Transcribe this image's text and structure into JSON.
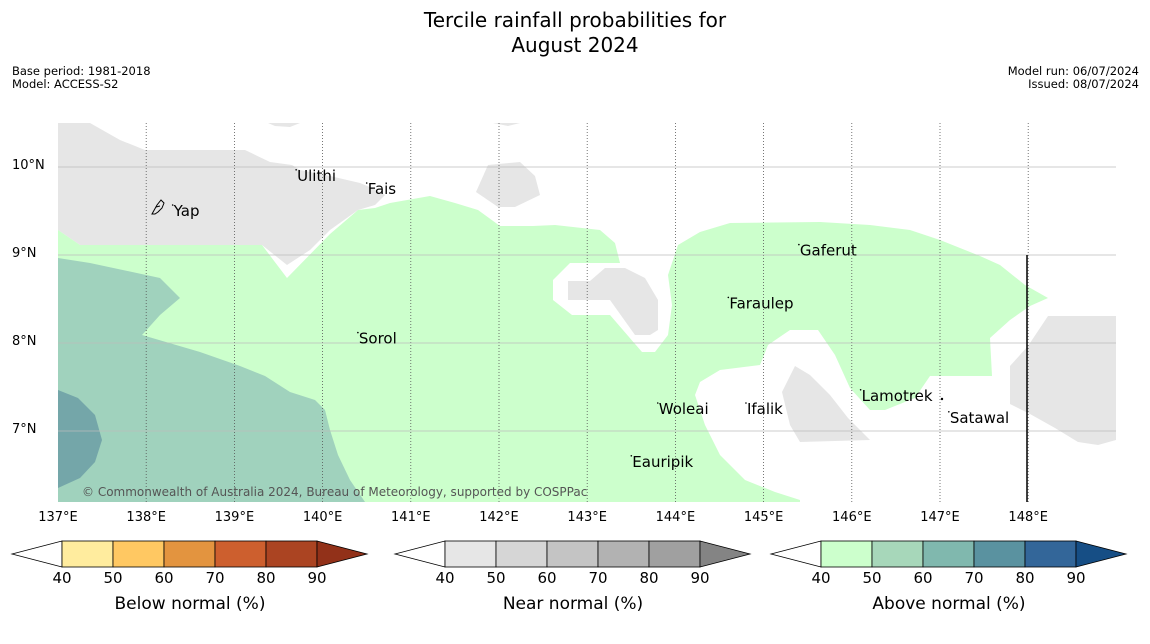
{
  "title_line1": "Tercile rainfall probabilities for",
  "title_line2": "August 2024",
  "meta_left": {
    "base_period": "Base period: 1981-2018",
    "model": "Model: ACCESS-S2"
  },
  "meta_right": {
    "model_run": "Model run: 06/07/2024",
    "issued": "Issued: 08/07/2024"
  },
  "longitude_labels": [
    "137°E",
    "138°E",
    "139°E",
    "140°E",
    "141°E",
    "142°E",
    "143°E",
    "144°E",
    "145°E",
    "146°E",
    "147°E",
    "148°E"
  ],
  "latitude_labels": [
    "10°N",
    "9°N",
    "8°N",
    "7°N"
  ],
  "places": [
    {
      "name": "Yap",
      "lon": 138.3,
      "lat": 9.5
    },
    {
      "name": "Ulithi",
      "lon": 139.7,
      "lat": 9.9
    },
    {
      "name": "Fais",
      "lon": 140.5,
      "lat": 9.75
    },
    {
      "name": "Gaferut",
      "lon": 145.4,
      "lat": 9.05
    },
    {
      "name": "Faraulep",
      "lon": 144.6,
      "lat": 8.45
    },
    {
      "name": "Sorol",
      "lon": 140.4,
      "lat": 8.05
    },
    {
      "name": "Lamotrek",
      "lon": 146.1,
      "lat": 7.4
    },
    {
      "name": "Woleai",
      "lon": 143.8,
      "lat": 7.25
    },
    {
      "name": "Ifalik",
      "lon": 144.8,
      "lat": 7.25
    },
    {
      "name": "Satawal",
      "lon": 147.1,
      "lat": 7.15
    },
    {
      "name": "Eauripik",
      "lon": 143.5,
      "lat": 6.65
    }
  ],
  "copyright": "© Commonwealth of Australia 2024, Bureau of Meteorology, supported by COSPPac",
  "colorbars": [
    {
      "label": "Below normal (%)",
      "ticks": [
        "40",
        "50",
        "60",
        "70",
        "80",
        "90"
      ],
      "colors": [
        "#ffffff",
        "#ffec9e",
        "#ffc862",
        "#e3943f",
        "#cd5f2e",
        "#ab4422",
        "#923119"
      ]
    },
    {
      "label": "Near normal (%)",
      "ticks": [
        "40",
        "50",
        "60",
        "70",
        "80",
        "90"
      ],
      "colors": [
        "#ffffff",
        "#e6e6e6",
        "#d6d6d6",
        "#c4c4c4",
        "#b2b2b2",
        "#a0a0a0",
        "#848484"
      ]
    },
    {
      "label": "Above normal (%)",
      "ticks": [
        "40",
        "50",
        "60",
        "70",
        "80",
        "90"
      ],
      "colors": [
        "#ffffff",
        "#ccffcc",
        "#a7d7ba",
        "#80b8ae",
        "#5a92a0",
        "#336699",
        "#164e85"
      ]
    }
  ],
  "region_colors": {
    "near_normal_40_50": "#e6e6e6",
    "above_40_50": "#ccffcc",
    "above_50_60": "#a0d2bd",
    "above_60_70": "#74a6a9"
  }
}
